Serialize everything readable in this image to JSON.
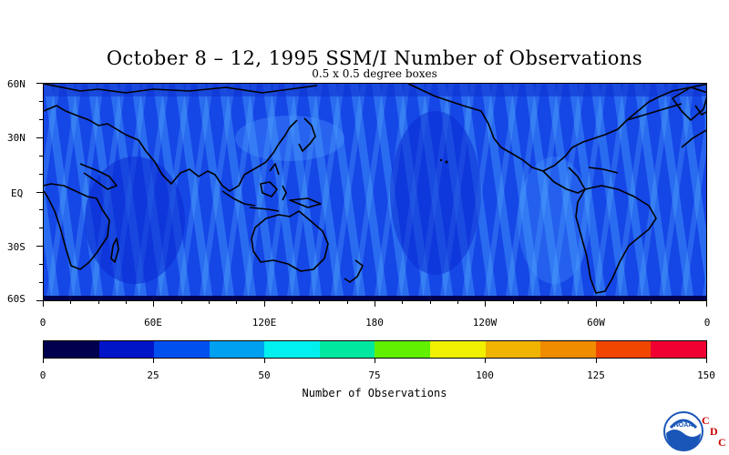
{
  "title": "October 8 – 12, 1995 SSM/I Number of Observations",
  "subtitle": "0.5 x 0.5 degree boxes",
  "lat_labels": [
    "60N",
    "30N",
    "EQ",
    "30S",
    "60S"
  ],
  "lon_labels": [
    "0",
    "60E",
    "120E",
    "180",
    "120W",
    "60W",
    "0"
  ],
  "colorbar": {
    "title": "Number of Observations",
    "tick_labels": [
      "0",
      "25",
      "50",
      "75",
      "100",
      "125",
      "150"
    ],
    "range": [
      0,
      150
    ],
    "colors": [
      "#00004e",
      "#0014c8",
      "#0050f0",
      "#00a0f0",
      "#00f0f0",
      "#00e8a0",
      "#60f000",
      "#f0f000",
      "#f0b400",
      "#f08c00",
      "#f04600",
      "#f00032"
    ]
  },
  "logo": {
    "emblem_text": "NOAA",
    "letters": [
      "C",
      "D",
      "C"
    ],
    "letter_color": "#cc0000",
    "emblem_color": "#1a56b8"
  },
  "map": {
    "ocean_base_color": "#1546e6",
    "band_color": "#3c8cf8",
    "coastline_color": "#000000",
    "antarctica_color": "#00004e"
  }
}
